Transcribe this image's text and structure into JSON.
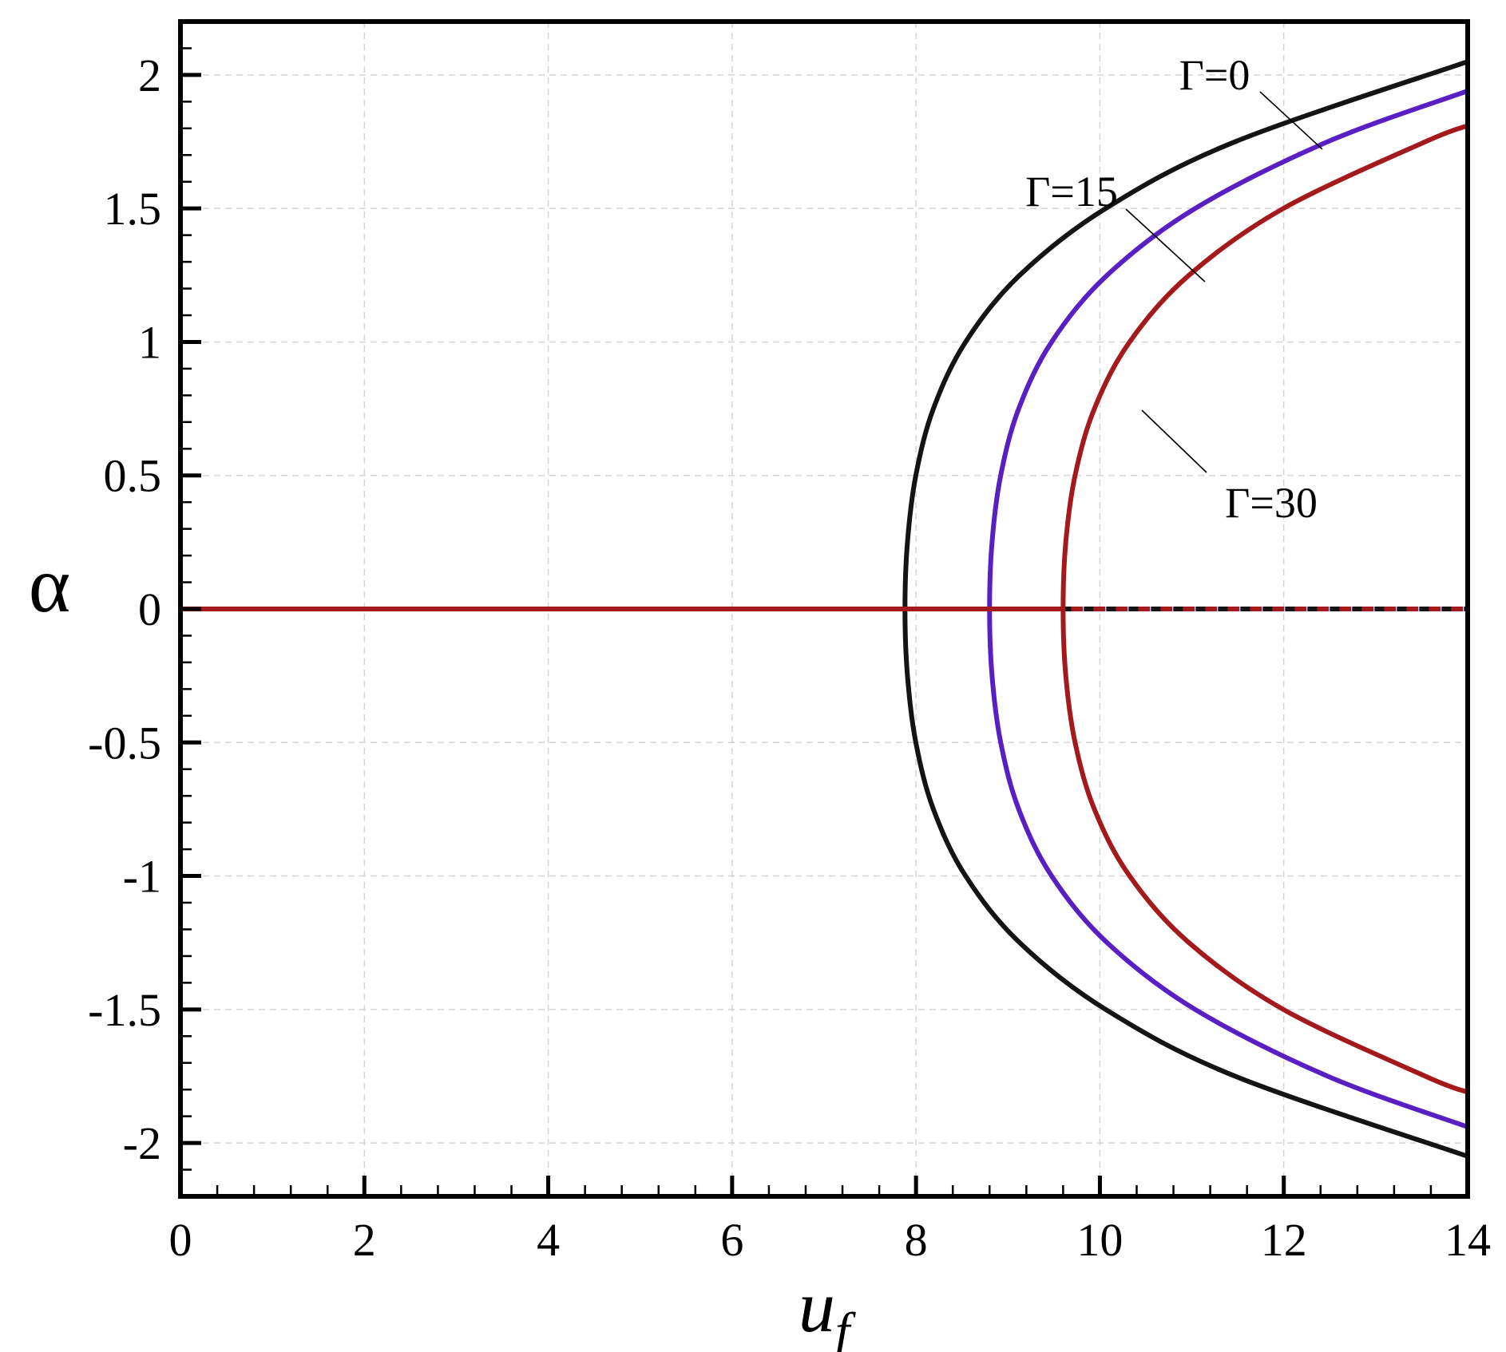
{
  "chart_data": {
    "type": "line",
    "x_label": "u",
    "x_label_sub": "f",
    "y_label": "α",
    "xlim": [
      0,
      14
    ],
    "ylim": [
      -2.2,
      2.2
    ],
    "xticks": [
      0,
      2,
      4,
      6,
      8,
      10,
      12,
      14
    ],
    "yticks": [
      2,
      1.5,
      1,
      0.5,
      0,
      -0.5,
      -1,
      -1.5,
      -2
    ],
    "xminorticks": [
      0,
      0.4,
      0.8,
      1.2,
      1.6,
      2,
      2.4,
      2.8,
      3.2,
      3.6,
      4,
      4.4,
      4.8,
      5.2,
      5.6,
      6,
      6.4,
      6.8,
      7.2,
      7.6,
      8,
      8.4,
      8.8,
      9.2,
      9.6,
      10,
      10.4,
      10.8,
      11.2,
      11.6,
      12,
      12.4,
      12.8,
      13.2,
      13.6,
      14
    ],
    "yminorticks": [
      -2.2,
      -2.1,
      -2,
      -1.9,
      -1.8,
      -1.7,
      -1.6,
      -1.5,
      -1.4,
      -1.3,
      -1.2,
      -1.1,
      -1,
      -0.9,
      -0.8,
      -0.7,
      -0.6,
      -0.5,
      -0.4,
      -0.3,
      -0.2,
      -0.1,
      0,
      0.1,
      0.2,
      0.3,
      0.4,
      0.5,
      0.6,
      0.7,
      0.8,
      0.9,
      1,
      1.1,
      1.2,
      1.3,
      1.4,
      1.5,
      1.6,
      1.7,
      1.8,
      1.9,
      2,
      2.1,
      2.2
    ],
    "grid": true,
    "series": [
      {
        "name": "Γ=0",
        "color": "#141414",
        "branch": {
          "x": [
            14,
            11.471,
            10.063,
            9.128,
            8.539,
            8.189,
            7.998,
            7.907,
            7.88,
            7.907,
            7.998,
            8.189,
            8.539,
            9.128,
            10.063,
            11.471,
            14
          ],
          "values": [
            -2.05,
            -1.75,
            -1.5,
            -1.25,
            -1,
            -0.75,
            -0.5,
            -0.25,
            0,
            0.25,
            0.5,
            0.75,
            1,
            1.25,
            1.5,
            1.75,
            2.05
          ]
        },
        "stable": {
          "x": [
            0,
            7.88
          ],
          "values": [
            0,
            0
          ]
        },
        "unstable": {
          "x": [
            7.88,
            14
          ],
          "values": [
            0,
            0
          ]
        }
      },
      {
        "name": "Γ=15",
        "color": "#5a1fc2",
        "branch": {
          "x": [
            14,
            12.478,
            11.036,
            10.079,
            9.475,
            9.117,
            8.921,
            8.827,
            8.8,
            8.827,
            8.921,
            9.117,
            9.475,
            10.079,
            11.036,
            12.478,
            14
          ],
          "values": [
            -1.94,
            -1.75,
            -1.5,
            -1.25,
            -1,
            -0.75,
            -0.5,
            -0.25,
            0,
            0.25,
            0.5,
            0.75,
            1,
            1.25,
            1.5,
            1.75,
            1.94
          ]
        },
        "stable": {
          "x": [
            0,
            8.8
          ],
          "values": [
            0,
            0
          ]
        },
        "unstable": {
          "x": [
            8.8,
            14
          ],
          "values": [
            0,
            0
          ]
        }
      },
      {
        "name": "Γ=30",
        "color": "#a3191c",
        "branch": {
          "x": [
            14,
            13.54,
            11.995,
            10.969,
            10.323,
            9.94,
            9.73,
            9.629,
            9.6,
            9.629,
            9.73,
            9.94,
            10.323,
            10.969,
            11.995,
            13.54,
            14
          ],
          "values": [
            -1.81,
            -1.75,
            -1.5,
            -1.25,
            -1,
            -0.75,
            -0.5,
            -0.25,
            0,
            0.25,
            0.5,
            0.75,
            1,
            1.25,
            1.5,
            1.75,
            1.81
          ]
        },
        "stable": {
          "x": [
            0,
            9.6
          ],
          "values": [
            0,
            0
          ]
        },
        "unstable": {
          "x": [
            9.6,
            14
          ],
          "values": [
            0,
            0
          ]
        }
      }
    ]
  }
}
